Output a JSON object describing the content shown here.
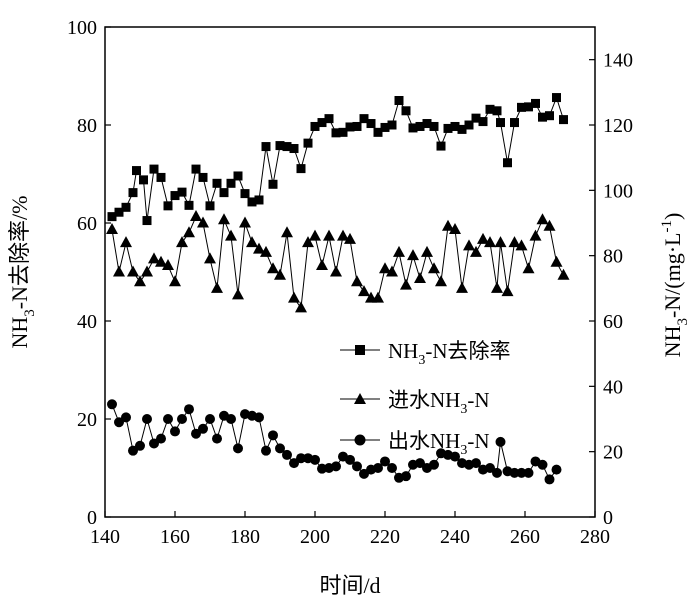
{
  "chart_data": {
    "type": "line",
    "xlabel": "时间/d",
    "ylabel_left": "NH3-N去除率/%",
    "ylabel_right": "NH3-N/(mg·L-1)",
    "xlim": [
      140,
      280
    ],
    "ylim_left": [
      0,
      100
    ],
    "ylim_right": [
      0,
      150
    ],
    "x_ticks": [
      140,
      160,
      180,
      200,
      220,
      240,
      260,
      280
    ],
    "y_left_ticks": [
      0,
      20,
      40,
      60,
      80,
      100
    ],
    "y_right_ticks": [
      0,
      20,
      40,
      60,
      80,
      100,
      120,
      140
    ],
    "legend_position": "right-center",
    "series": [
      {
        "name": "NH3-N去除率",
        "axis": "left",
        "marker": "square",
        "points": [
          [
            142,
            61.3
          ],
          [
            144,
            62.2
          ],
          [
            146,
            63.2
          ],
          [
            148,
            66.2
          ],
          [
            149,
            70.7
          ],
          [
            151,
            68.8
          ],
          [
            152,
            60.5
          ],
          [
            154,
            71.0
          ],
          [
            156,
            69.3
          ],
          [
            158,
            63.5
          ],
          [
            160,
            65.6
          ],
          [
            162,
            66.3
          ],
          [
            164,
            63.6
          ],
          [
            166,
            71.0
          ],
          [
            168,
            69.3
          ],
          [
            170,
            63.5
          ],
          [
            172,
            68.1
          ],
          [
            174,
            66.2
          ],
          [
            176,
            68.1
          ],
          [
            178,
            69.6
          ],
          [
            180,
            66.0
          ],
          [
            182,
            64.3
          ],
          [
            184,
            64.7
          ],
          [
            186,
            75.6
          ],
          [
            188,
            67.9
          ],
          [
            190,
            75.8
          ],
          [
            192,
            75.6
          ],
          [
            194,
            75.2
          ],
          [
            196,
            71.1
          ],
          [
            198,
            76.3
          ],
          [
            200,
            79.7
          ],
          [
            202,
            80.5
          ],
          [
            204,
            81.3
          ],
          [
            206,
            78.4
          ],
          [
            208,
            78.5
          ],
          [
            210,
            79.6
          ],
          [
            212,
            79.7
          ],
          [
            214,
            81.3
          ],
          [
            216,
            80.3
          ],
          [
            218,
            78.5
          ],
          [
            220,
            79.5
          ],
          [
            222,
            80.0
          ],
          [
            224,
            85.0
          ],
          [
            226,
            82.9
          ],
          [
            228,
            79.4
          ],
          [
            230,
            79.7
          ],
          [
            232,
            80.3
          ],
          [
            234,
            79.7
          ],
          [
            236,
            75.7
          ],
          [
            238,
            79.3
          ],
          [
            240,
            79.7
          ],
          [
            242,
            79.1
          ],
          [
            244,
            80.0
          ],
          [
            246,
            81.4
          ],
          [
            248,
            80.7
          ],
          [
            250,
            83.2
          ],
          [
            252,
            82.9
          ],
          [
            253,
            80.5
          ],
          [
            255,
            72.3
          ],
          [
            257,
            80.5
          ],
          [
            259,
            83.6
          ],
          [
            261,
            83.7
          ],
          [
            263,
            84.4
          ],
          [
            265,
            81.6
          ],
          [
            267,
            81.9
          ],
          [
            269,
            85.6
          ],
          [
            271,
            81.1
          ]
        ]
      },
      {
        "name": "进水NH3-N",
        "axis": "right",
        "marker": "triangle",
        "points": [
          [
            142,
            88
          ],
          [
            144,
            75
          ],
          [
            146,
            84
          ],
          [
            148,
            75
          ],
          [
            150,
            72
          ],
          [
            152,
            75
          ],
          [
            154,
            79
          ],
          [
            156,
            78
          ],
          [
            158,
            77
          ],
          [
            160,
            72
          ],
          [
            162,
            84
          ],
          [
            164,
            87
          ],
          [
            166,
            92
          ],
          [
            168,
            90
          ],
          [
            170,
            79
          ],
          [
            172,
            70
          ],
          [
            174,
            91
          ],
          [
            176,
            86
          ],
          [
            178,
            68
          ],
          [
            180,
            90
          ],
          [
            182,
            84
          ],
          [
            184,
            82
          ],
          [
            186,
            81
          ],
          [
            188,
            76
          ],
          [
            190,
            74
          ],
          [
            192,
            87
          ],
          [
            194,
            67
          ],
          [
            196,
            64
          ],
          [
            198,
            84
          ],
          [
            200,
            86
          ],
          [
            202,
            77
          ],
          [
            204,
            86
          ],
          [
            206,
            75
          ],
          [
            208,
            86
          ],
          [
            210,
            85
          ],
          [
            212,
            72
          ],
          [
            214,
            69
          ],
          [
            216,
            67
          ],
          [
            218,
            67
          ],
          [
            220,
            76
          ],
          [
            222,
            75
          ],
          [
            224,
            81
          ],
          [
            226,
            71
          ],
          [
            228,
            80
          ],
          [
            230,
            73
          ],
          [
            232,
            81
          ],
          [
            234,
            76
          ],
          [
            236,
            72
          ],
          [
            238,
            89
          ],
          [
            240,
            88
          ],
          [
            242,
            70
          ],
          [
            244,
            83
          ],
          [
            246,
            81
          ],
          [
            248,
            85
          ],
          [
            250,
            84
          ],
          [
            252,
            70
          ],
          [
            253,
            84
          ],
          [
            255,
            69
          ],
          [
            257,
            84
          ],
          [
            259,
            83
          ],
          [
            261,
            76
          ],
          [
            263,
            86
          ],
          [
            265,
            91
          ],
          [
            267,
            89
          ],
          [
            269,
            78
          ],
          [
            271,
            74
          ]
        ]
      },
      {
        "name": "出水NH3-N",
        "axis": "right",
        "marker": "circle",
        "points": [
          [
            142,
            34.5
          ],
          [
            144,
            29.0
          ],
          [
            146,
            30.5
          ],
          [
            148,
            20.3
          ],
          [
            150,
            21.8
          ],
          [
            152,
            30.0
          ],
          [
            154,
            22.5
          ],
          [
            156,
            24.0
          ],
          [
            158,
            30.0
          ],
          [
            160,
            26.2
          ],
          [
            162,
            30.0
          ],
          [
            164,
            33.0
          ],
          [
            166,
            25.5
          ],
          [
            168,
            27.0
          ],
          [
            170,
            30.0
          ],
          [
            172,
            24.0
          ],
          [
            174,
            31.0
          ],
          [
            176,
            30.0
          ],
          [
            178,
            21.0
          ],
          [
            180,
            31.5
          ],
          [
            182,
            31.0
          ],
          [
            184,
            30.5
          ],
          [
            186,
            20.3
          ],
          [
            188,
            25.0
          ],
          [
            190,
            21.0
          ],
          [
            192,
            19.0
          ],
          [
            194,
            16.5
          ],
          [
            196,
            18.0
          ],
          [
            198,
            18.0
          ],
          [
            200,
            17.5
          ],
          [
            202,
            14.8
          ],
          [
            204,
            15.0
          ],
          [
            206,
            15.5
          ],
          [
            208,
            18.5
          ],
          [
            210,
            17.5
          ],
          [
            212,
            15.5
          ],
          [
            214,
            13.2
          ],
          [
            216,
            14.5
          ],
          [
            218,
            15.0
          ],
          [
            220,
            17.0
          ],
          [
            222,
            15.0
          ],
          [
            224,
            12.0
          ],
          [
            226,
            12.5
          ],
          [
            228,
            16.0
          ],
          [
            230,
            16.5
          ],
          [
            232,
            15.0
          ],
          [
            234,
            16.0
          ],
          [
            236,
            19.5
          ],
          [
            238,
            19.0
          ],
          [
            240,
            18.5
          ],
          [
            242,
            16.5
          ],
          [
            244,
            16.0
          ],
          [
            246,
            16.5
          ],
          [
            248,
            14.5
          ],
          [
            250,
            15.0
          ],
          [
            252,
            13.5
          ],
          [
            253,
            23.0
          ],
          [
            255,
            14.0
          ],
          [
            257,
            13.5
          ],
          [
            259,
            13.5
          ],
          [
            261,
            13.5
          ],
          [
            263,
            17.0
          ],
          [
            265,
            16.0
          ],
          [
            267,
            11.5
          ],
          [
            269,
            14.5
          ]
        ]
      }
    ]
  },
  "legend": {
    "items": [
      {
        "marker": "square",
        "prefix": "NH",
        "sub": "3",
        "suffix": "-N去除率"
      },
      {
        "marker": "triangle",
        "prefix": "进水NH",
        "sub": "3",
        "suffix": "-N"
      },
      {
        "marker": "circle",
        "prefix": "出水NH",
        "sub": "3",
        "suffix": "-N"
      }
    ]
  },
  "axis_titles": {
    "x": "时间/d",
    "left": {
      "prefix": "NH",
      "sub": "3",
      "suffix": "-N去除率/%"
    },
    "right": {
      "prefix": "NH",
      "sub": "3",
      "suffix": "-N/(mg·L",
      "sup": "-1",
      "close": ")"
    }
  },
  "colors": {
    "line": "#000000",
    "marker": "#000000",
    "background": "#ffffff"
  }
}
